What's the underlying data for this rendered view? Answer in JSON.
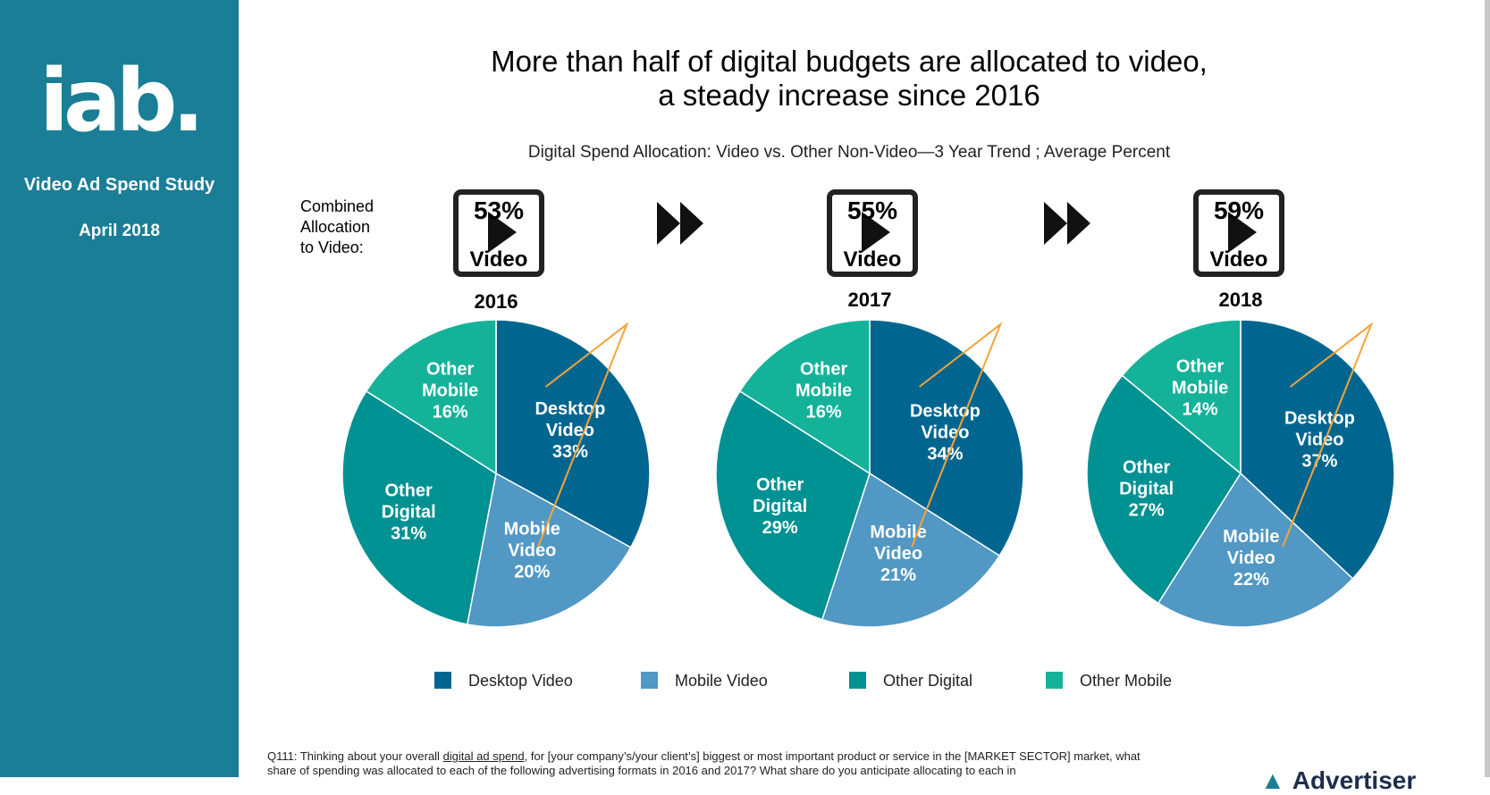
{
  "sidebar": {
    "logo": "iab.",
    "study": "Video Ad Spend Study",
    "date": "April 2018"
  },
  "header": {
    "title_line1": "More than half of digital budgets are allocated to video,",
    "title_line2": "a steady increase since 2016",
    "subtitle": "Digital Spend Allocation:  Video vs. Other Non-Video—3 Year Trend ; Average Percent"
  },
  "combined_label": [
    "Combined",
    "Allocation",
    "to Video:"
  ],
  "colors": {
    "sidebar": "#1a7e96",
    "desktop_video": "#006690",
    "mobile_video": "#5198c4",
    "other_digital": "#009193",
    "other_mobile": "#15b29a",
    "arrow": "#f5a33a"
  },
  "footnote": {
    "q": "Q111: Thinking about your overall ",
    "link": "digital ad spend",
    "rest": ", for [your company’s/your client’s] biggest or most important product or service in the [MARKET SECTOR] market, what share of spending was allocated to each of the following advertising formats in 2016 and 2017?  What share do you anticipate allocating to each in"
  },
  "footer_logo": "Advertiser",
  "chart_data": {
    "type": "pie",
    "title": "Digital Spend Allocation:  Video vs. Other Non-Video—3 Year Trend ; Average Percent",
    "legend": [
      "Desktop Video",
      "Mobile Video",
      "Other Digital",
      "Other Mobile"
    ],
    "legend_position": "bottom",
    "charts": [
      {
        "year": "2016",
        "combined_video": "53%",
        "badge_label": "Video",
        "slices": [
          {
            "label": [
              "Desktop",
              "Video"
            ],
            "value": 33,
            "text": "33%",
            "color_key": "desktop_video"
          },
          {
            "label": [
              "Mobile",
              "Video"
            ],
            "value": 20,
            "text": "20%",
            "color_key": "mobile_video"
          },
          {
            "label": [
              "Other",
              "Digital"
            ],
            "value": 31,
            "text": "31%",
            "color_key": "other_digital"
          },
          {
            "label": [
              "Other",
              "Mobile"
            ],
            "value": 16,
            "text": "16%",
            "color_key": "other_mobile"
          }
        ]
      },
      {
        "year": "2017",
        "combined_video": "55%",
        "badge_label": "Video",
        "slices": [
          {
            "label": [
              "Desktop",
              "Video"
            ],
            "value": 34,
            "text": "34%",
            "color_key": "desktop_video"
          },
          {
            "label": [
              "Mobile",
              "Video"
            ],
            "value": 21,
            "text": "21%",
            "color_key": "mobile_video"
          },
          {
            "label": [
              "Other",
              "Digital"
            ],
            "value": 29,
            "text": "29%",
            "color_key": "other_digital"
          },
          {
            "label": [
              "Other",
              "Mobile"
            ],
            "value": 16,
            "text": "16%",
            "color_key": "other_mobile"
          }
        ]
      },
      {
        "year": "2018",
        "combined_video": "59%",
        "badge_label": "Video",
        "slices": [
          {
            "label": [
              "Desktop",
              "Video"
            ],
            "value": 37,
            "text": "37%",
            "color_key": "desktop_video"
          },
          {
            "label": [
              "Mobile",
              "Video"
            ],
            "value": 22,
            "text": "22%",
            "color_key": "mobile_video"
          },
          {
            "label": [
              "Other",
              "Digital"
            ],
            "value": 27,
            "text": "27%",
            "color_key": "other_digital"
          },
          {
            "label": [
              "Other",
              "Mobile"
            ],
            "value": 14,
            "text": "14%",
            "color_key": "other_mobile"
          }
        ]
      }
    ]
  }
}
